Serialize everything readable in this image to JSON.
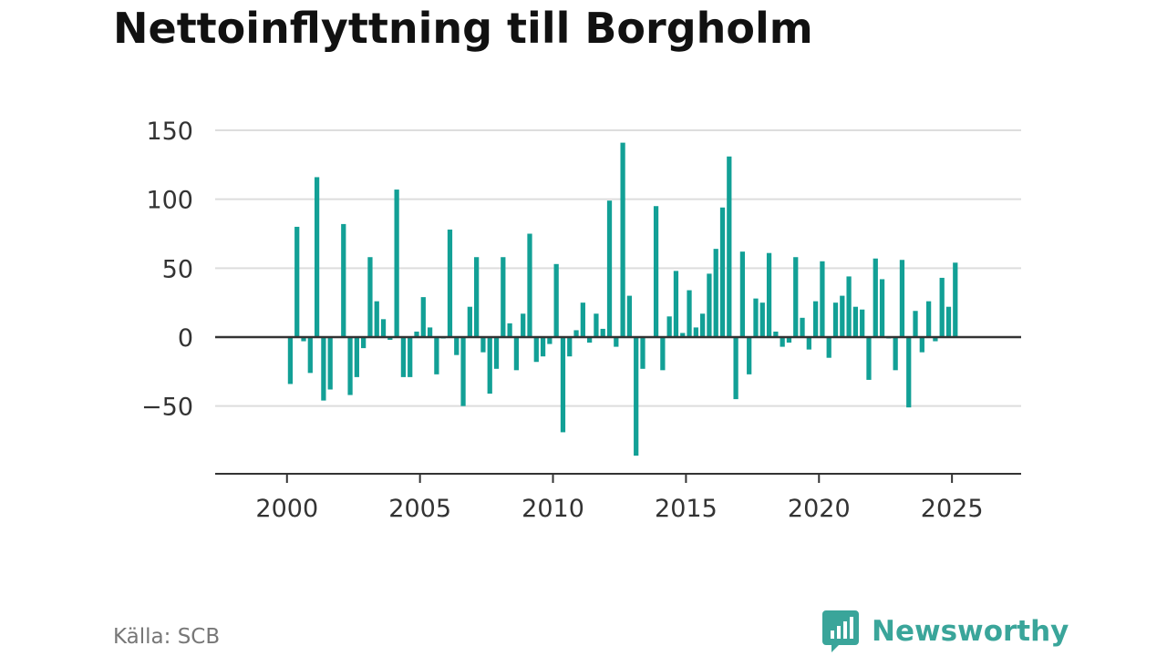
{
  "title": "Nettoinflyttning till Borgholm",
  "source": "Källa: SCB",
  "brand": "Newsworthy",
  "colors": {
    "bar": "#12a096",
    "grid": "#dddddd",
    "zero_line": "#333333",
    "brand": "#3aa59a"
  },
  "chart_data": {
    "type": "bar",
    "title": "Nettoinflyttning till Borgholm",
    "xlabel": "",
    "ylabel": "",
    "ylim": [
      -100,
      150
    ],
    "xlim": [
      1997.3,
      2027.6
    ],
    "grid": "horizontal",
    "yticks": [
      150,
      100,
      50,
      0,
      -50
    ],
    "ytick_labels": [
      "150",
      "100",
      "50",
      "0",
      "−50"
    ],
    "xticks": [
      2000,
      2005,
      2010,
      2015,
      2020,
      2025
    ],
    "xtick_labels": [
      "2000",
      "2005",
      "2010",
      "2015",
      "2020",
      "2025"
    ],
    "period": "quarterly",
    "start": "2000 Q1",
    "values": [
      -34,
      80,
      -3,
      -26,
      116,
      -46,
      -38,
      0,
      82,
      -42,
      -29,
      -8,
      58,
      26,
      13,
      -2,
      107,
      -29,
      -29,
      4,
      29,
      7,
      -27,
      -1,
      78,
      -13,
      -50,
      22,
      58,
      -11,
      -41,
      -23,
      58,
      10,
      -24,
      17,
      75,
      -18,
      -14,
      -5,
      53,
      -69,
      -14,
      5,
      25,
      -4,
      17,
      6,
      99,
      -7,
      141,
      30,
      -86,
      -23,
      0,
      95,
      -24,
      15,
      48,
      3,
      34,
      7,
      17,
      46,
      64,
      94,
      131,
      -45,
      62,
      -27,
      28,
      25,
      61,
      4,
      -7,
      -4,
      58,
      14,
      -9,
      26,
      55,
      -15,
      25,
      30,
      44,
      22,
      20,
      -31,
      57,
      42,
      -1,
      -24,
      56,
      -51,
      19,
      -11,
      26,
      -3,
      43,
      22,
      54
    ]
  }
}
